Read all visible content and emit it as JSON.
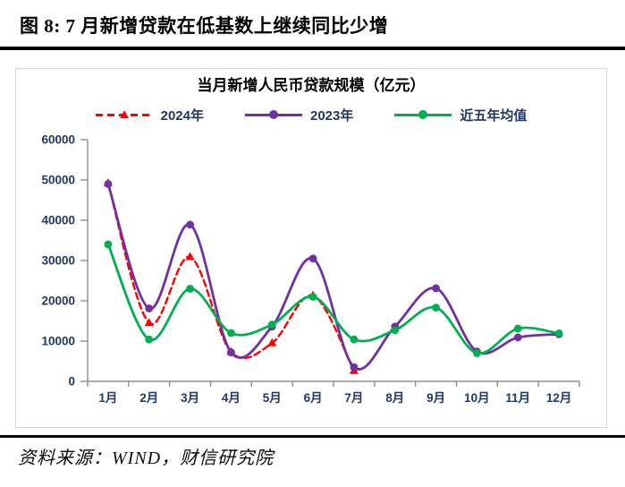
{
  "page": {
    "title": "图 8: 7 月新增贷款在低基数上继续同比少增",
    "source": "资料来源：WIND，财信研究院"
  },
  "chart_data": {
    "type": "line",
    "title": "当月新增人民币贷款规模（亿元）",
    "categories": [
      "1月",
      "2月",
      "3月",
      "4月",
      "5月",
      "6月",
      "7月",
      "8月",
      "9月",
      "10月",
      "11月",
      "12月"
    ],
    "series": [
      {
        "name": "2024年",
        "color": "#FF0000",
        "line_style": "dashed",
        "marker": "triangle",
        "values": [
          49200,
          14500,
          30900,
          7300,
          9500,
          21300,
          2600,
          null,
          null,
          null,
          null,
          null
        ]
      },
      {
        "name": "2023年",
        "color": "#7030A0",
        "line_style": "solid",
        "marker": "circle",
        "values": [
          49000,
          18100,
          38900,
          7200,
          13600,
          30500,
          3500,
          13600,
          23100,
          7400,
          10900,
          11700
        ]
      },
      {
        "name": "近五年均值",
        "color": "#00B050",
        "line_style": "solid",
        "marker": "circle",
        "values": [
          34000,
          10400,
          23000,
          12000,
          14100,
          21000,
          10400,
          12700,
          18300,
          7000,
          13100,
          11900
        ]
      }
    ],
    "ylim": [
      0,
      60000
    ],
    "ytick_labels": [
      "0",
      "10000",
      "20000",
      "30000",
      "40000",
      "50000",
      "60000"
    ],
    "grid": false,
    "legend_position": "top",
    "axis_color": "#8F8F8F",
    "label_color": "#203864",
    "smooth_lines": true
  }
}
